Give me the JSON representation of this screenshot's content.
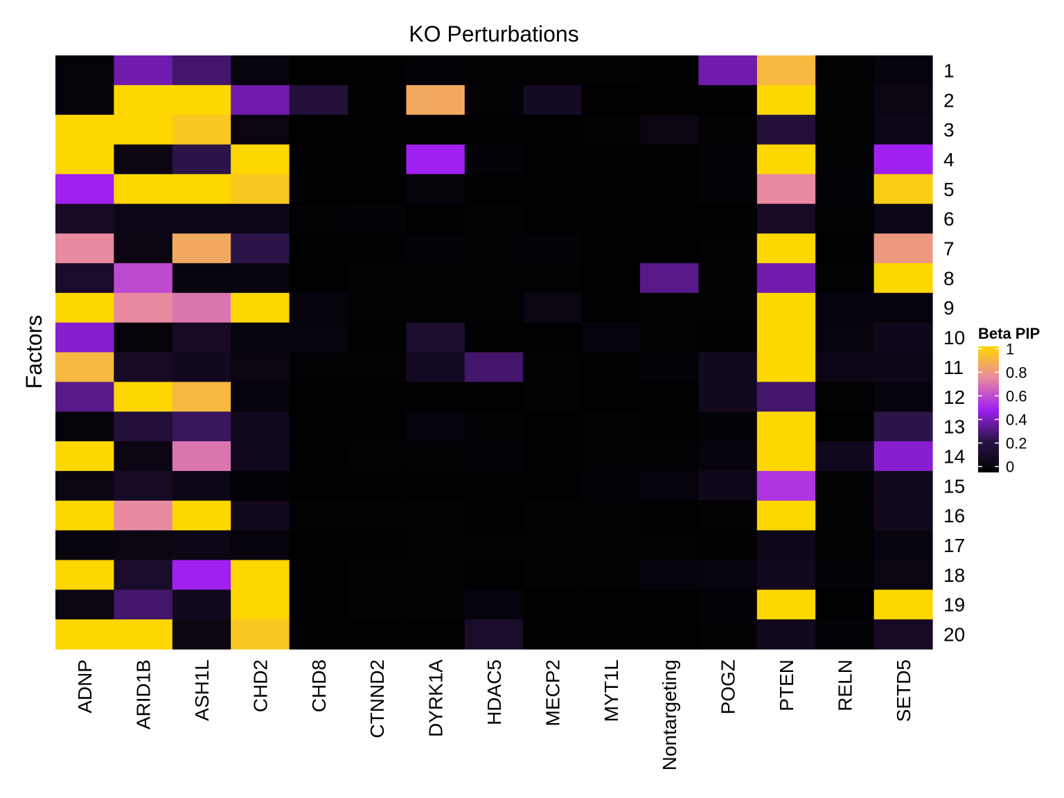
{
  "chart_data": {
    "type": "heatmap",
    "title": "KO Perturbations",
    "xlabel": "",
    "ylabel": "Factors",
    "x": [
      "ADNP",
      "ARID1B",
      "ASH1L",
      "CHD2",
      "CHD8",
      "CTNND2",
      "DYRK1A",
      "HDAC5",
      "MECP2",
      "MYT1L",
      "Nontargeting",
      "POGZ",
      "PTEN",
      "RELN",
      "SETD5"
    ],
    "y": [
      "1",
      "2",
      "3",
      "4",
      "5",
      "6",
      "7",
      "8",
      "9",
      "10",
      "11",
      "12",
      "13",
      "14",
      "15",
      "16",
      "17",
      "18",
      "19",
      "20"
    ],
    "values": [
      [
        0.03,
        0.4,
        0.3,
        0.05,
        0.0,
        0.0,
        0.02,
        0.01,
        0.01,
        0.01,
        0.0,
        0.4,
        0.9,
        0.01,
        0.04
      ],
      [
        0.03,
        1.0,
        1.0,
        0.4,
        0.2,
        0.0,
        0.85,
        0.01,
        0.12,
        0.0,
        0.0,
        0.0,
        1.0,
        0.01,
        0.06
      ],
      [
        1.0,
        1.0,
        0.95,
        0.06,
        0.0,
        0.0,
        0.0,
        0.0,
        0.0,
        0.01,
        0.06,
        0.01,
        0.2,
        0.01,
        0.08
      ],
      [
        1.0,
        0.06,
        0.25,
        1.0,
        0.0,
        0.0,
        0.5,
        0.02,
        0.0,
        0.0,
        0.0,
        0.02,
        1.0,
        0.01,
        0.5
      ],
      [
        0.5,
        1.0,
        1.0,
        0.95,
        0.0,
        0.0,
        0.03,
        0.0,
        0.0,
        0.0,
        0.0,
        0.02,
        0.75,
        0.02,
        0.97
      ],
      [
        0.14,
        0.08,
        0.08,
        0.08,
        0.01,
        0.02,
        0.0,
        0.01,
        0.0,
        0.0,
        0.0,
        0.0,
        0.13,
        0.01,
        0.07
      ],
      [
        0.75,
        0.06,
        0.85,
        0.25,
        0.0,
        0.0,
        0.02,
        0.01,
        0.02,
        0.0,
        0.0,
        0.01,
        1.0,
        0.0,
        0.8
      ],
      [
        0.15,
        0.6,
        0.05,
        0.05,
        0.0,
        0.01,
        0.01,
        0.01,
        0.01,
        0.0,
        0.35,
        0.01,
        0.4,
        0.01,
        1.0
      ],
      [
        1.0,
        0.75,
        0.7,
        1.0,
        0.04,
        0.01,
        0.01,
        0.01,
        0.06,
        0.0,
        0.01,
        0.01,
        1.0,
        0.04,
        0.04
      ],
      [
        0.45,
        0.03,
        0.13,
        0.05,
        0.05,
        0.0,
        0.16,
        0.0,
        0.0,
        0.04,
        0.01,
        0.0,
        1.0,
        0.05,
        0.09
      ],
      [
        0.9,
        0.13,
        0.1,
        0.06,
        0.01,
        0.01,
        0.12,
        0.3,
        0.01,
        0.0,
        0.02,
        0.11,
        1.0,
        0.07,
        0.08
      ],
      [
        0.35,
        1.0,
        0.9,
        0.04,
        0.0,
        0.0,
        0.0,
        0.0,
        0.01,
        0.0,
        0.0,
        0.11,
        0.3,
        0.01,
        0.04
      ],
      [
        0.03,
        0.2,
        0.28,
        0.1,
        0.0,
        0.0,
        0.04,
        0.01,
        0.0,
        0.01,
        0.0,
        0.02,
        1.0,
        0.0,
        0.25
      ],
      [
        1.0,
        0.06,
        0.7,
        0.1,
        0.0,
        0.01,
        0.01,
        0.02,
        0.0,
        0.01,
        0.01,
        0.04,
        1.0,
        0.1,
        0.45
      ],
      [
        0.06,
        0.13,
        0.07,
        0.02,
        0.0,
        0.0,
        0.0,
        0.0,
        0.0,
        0.02,
        0.04,
        0.09,
        0.55,
        0.01,
        0.1
      ],
      [
        1.0,
        0.75,
        1.0,
        0.1,
        0.01,
        0.01,
        0.01,
        0.0,
        0.01,
        0.01,
        0.0,
        0.01,
        1.0,
        0.01,
        0.1
      ],
      [
        0.05,
        0.06,
        0.07,
        0.04,
        0.0,
        0.0,
        0.01,
        0.01,
        0.01,
        0.01,
        0.01,
        0.0,
        0.09,
        0.01,
        0.05
      ],
      [
        1.0,
        0.15,
        0.5,
        1.0,
        0.0,
        0.01,
        0.01,
        0.0,
        0.01,
        0.01,
        0.04,
        0.05,
        0.11,
        0.02,
        0.06
      ],
      [
        0.06,
        0.3,
        0.1,
        1.0,
        0.0,
        0.01,
        0.01,
        0.04,
        0.0,
        0.0,
        0.0,
        0.02,
        1.0,
        0.0,
        1.0
      ],
      [
        1.0,
        1.0,
        0.06,
        0.95,
        0.0,
        0.0,
        0.0,
        0.15,
        0.0,
        0.0,
        0.0,
        0.01,
        0.1,
        0.02,
        0.13
      ]
    ],
    "legend": {
      "title": "Beta PIP",
      "ticks": [
        1,
        0.8,
        0.6,
        0.4,
        0.2,
        0
      ],
      "tick_labels": [
        "1",
        "0.8",
        "0.6",
        "0.4",
        "0.2",
        "0"
      ],
      "range": [
        0,
        1
      ],
      "position": "right"
    },
    "colors": {
      "scale": [
        "#000000",
        "#2a1448",
        "#a020f0",
        "#e88aa0",
        "#ffd700"
      ]
    },
    "grid": false
  }
}
